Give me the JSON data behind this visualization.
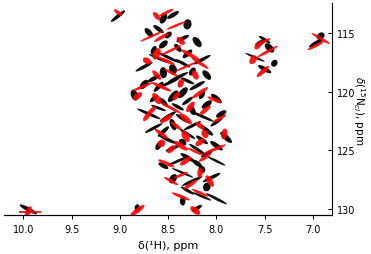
{
  "xlim": [
    10.2,
    6.8
  ],
  "ylim": [
    130.5,
    112.5
  ],
  "xlabel": "δ(¹H), ppm",
  "ylabel": "δ(¹⁵N), ppm",
  "xticks": [
    10.0,
    9.5,
    9.0,
    8.5,
    8.0,
    7.5,
    7.0
  ],
  "yticks": [
    115,
    120,
    125,
    130
  ],
  "background_color": "#ffffff",
  "black_peaks": [
    [
      8.45,
      113.5
    ],
    [
      8.55,
      113.8
    ],
    [
      8.3,
      114.3
    ],
    [
      8.6,
      114.7
    ],
    [
      8.5,
      115.2
    ],
    [
      8.35,
      115.5
    ],
    [
      8.7,
      115.0
    ],
    [
      8.2,
      115.8
    ],
    [
      8.55,
      116.0
    ],
    [
      8.4,
      116.3
    ],
    [
      8.65,
      116.5
    ],
    [
      8.3,
      116.8
    ],
    [
      8.5,
      117.1
    ],
    [
      8.15,
      117.3
    ],
    [
      8.35,
      117.6
    ],
    [
      8.6,
      117.2
    ],
    [
      8.75,
      117.9
    ],
    [
      8.45,
      118.1
    ],
    [
      8.25,
      118.3
    ],
    [
      8.55,
      118.4
    ],
    [
      8.1,
      118.6
    ],
    [
      8.4,
      118.8
    ],
    [
      8.65,
      118.9
    ],
    [
      8.3,
      119.1
    ],
    [
      8.5,
      119.3
    ],
    [
      8.2,
      119.5
    ],
    [
      8.6,
      119.6
    ],
    [
      8.75,
      119.4
    ],
    [
      8.35,
      120.1
    ],
    [
      8.15,
      120.3
    ],
    [
      8.45,
      120.4
    ],
    [
      8.0,
      120.6
    ],
    [
      8.3,
      120.8
    ],
    [
      8.55,
      120.9
    ],
    [
      8.65,
      120.6
    ],
    [
      8.85,
      120.3
    ],
    [
      8.1,
      121.1
    ],
    [
      8.4,
      121.3
    ],
    [
      8.25,
      121.6
    ],
    [
      8.6,
      121.4
    ],
    [
      7.95,
      121.9
    ],
    [
      8.15,
      122.1
    ],
    [
      8.35,
      122.3
    ],
    [
      8.5,
      122.1
    ],
    [
      8.7,
      121.9
    ],
    [
      8.0,
      122.6
    ],
    [
      8.25,
      122.9
    ],
    [
      8.45,
      122.8
    ],
    [
      8.1,
      123.3
    ],
    [
      8.3,
      123.6
    ],
    [
      8.55,
      123.4
    ],
    [
      8.65,
      123.1
    ],
    [
      7.9,
      123.9
    ],
    [
      8.15,
      124.1
    ],
    [
      8.35,
      124.3
    ],
    [
      8.5,
      124.1
    ],
    [
      8.0,
      124.6
    ],
    [
      8.2,
      124.9
    ],
    [
      8.45,
      124.8
    ],
    [
      8.6,
      124.6
    ],
    [
      8.1,
      125.3
    ],
    [
      8.3,
      125.6
    ],
    [
      8.0,
      125.9
    ],
    [
      8.2,
      126.1
    ],
    [
      8.4,
      125.9
    ],
    [
      8.55,
      126.3
    ],
    [
      8.15,
      126.6
    ],
    [
      8.35,
      126.9
    ],
    [
      8.05,
      127.3
    ],
    [
      8.25,
      127.6
    ],
    [
      8.45,
      127.4
    ],
    [
      8.1,
      128.1
    ],
    [
      8.3,
      128.4
    ],
    [
      8.15,
      128.9
    ],
    [
      8.0,
      129.1
    ],
    [
      8.35,
      129.3
    ],
    [
      8.2,
      129.9
    ],
    [
      7.5,
      115.6
    ],
    [
      7.55,
      115.9
    ],
    [
      7.45,
      116.3
    ],
    [
      7.6,
      117.1
    ],
    [
      7.4,
      117.6
    ],
    [
      7.5,
      118.1
    ],
    [
      6.92,
      115.3
    ],
    [
      6.97,
      115.9
    ],
    [
      9.95,
      130.0
    ],
    [
      8.82,
      129.9
    ],
    [
      9.02,
      113.6
    ]
  ],
  "red_peaks": [
    [
      8.52,
      113.3
    ],
    [
      8.62,
      113.6
    ],
    [
      8.42,
      114.4
    ],
    [
      8.57,
      115.4
    ],
    [
      8.37,
      115.7
    ],
    [
      8.67,
      115.3
    ],
    [
      8.47,
      116.5
    ],
    [
      8.27,
      116.9
    ],
    [
      8.62,
      116.8
    ],
    [
      8.52,
      117.4
    ],
    [
      8.17,
      117.6
    ],
    [
      8.72,
      117.4
    ],
    [
      8.32,
      117.9
    ],
    [
      8.47,
      118.4
    ],
    [
      8.22,
      118.6
    ],
    [
      8.62,
      118.6
    ],
    [
      8.37,
      119.3
    ],
    [
      8.57,
      119.6
    ],
    [
      8.77,
      119.6
    ],
    [
      8.17,
      120.1
    ],
    [
      8.42,
      120.4
    ],
    [
      8.02,
      120.7
    ],
    [
      8.62,
      120.6
    ],
    [
      8.82,
      120.4
    ],
    [
      8.27,
      121.3
    ],
    [
      8.47,
      121.4
    ],
    [
      8.12,
      121.6
    ],
    [
      8.67,
      121.6
    ],
    [
      8.32,
      122.3
    ],
    [
      8.52,
      122.3
    ],
    [
      7.97,
      122.3
    ],
    [
      8.72,
      122.1
    ],
    [
      8.17,
      122.9
    ],
    [
      8.42,
      122.9
    ],
    [
      8.12,
      123.6
    ],
    [
      8.32,
      123.8
    ],
    [
      8.57,
      123.6
    ],
    [
      7.92,
      123.6
    ],
    [
      8.17,
      124.3
    ],
    [
      8.37,
      124.6
    ],
    [
      8.57,
      124.4
    ],
    [
      8.02,
      124.9
    ],
    [
      8.22,
      125.1
    ],
    [
      8.47,
      124.9
    ],
    [
      8.12,
      125.6
    ],
    [
      8.32,
      125.9
    ],
    [
      8.52,
      126.1
    ],
    [
      8.17,
      126.9
    ],
    [
      8.37,
      127.1
    ],
    [
      8.07,
      127.6
    ],
    [
      8.27,
      127.9
    ],
    [
      8.47,
      127.6
    ],
    [
      8.17,
      128.6
    ],
    [
      8.37,
      128.9
    ],
    [
      8.22,
      130.1
    ],
    [
      7.52,
      115.8
    ],
    [
      7.57,
      116.1
    ],
    [
      7.47,
      116.6
    ],
    [
      7.62,
      117.3
    ],
    [
      7.52,
      118.3
    ],
    [
      6.92,
      115.5
    ],
    [
      6.97,
      116.1
    ],
    [
      9.95,
      130.2
    ],
    [
      8.82,
      130.1
    ],
    [
      9.02,
      113.3
    ]
  ],
  "figsize": [
    3.71,
    2.55
  ],
  "dpi": 100
}
